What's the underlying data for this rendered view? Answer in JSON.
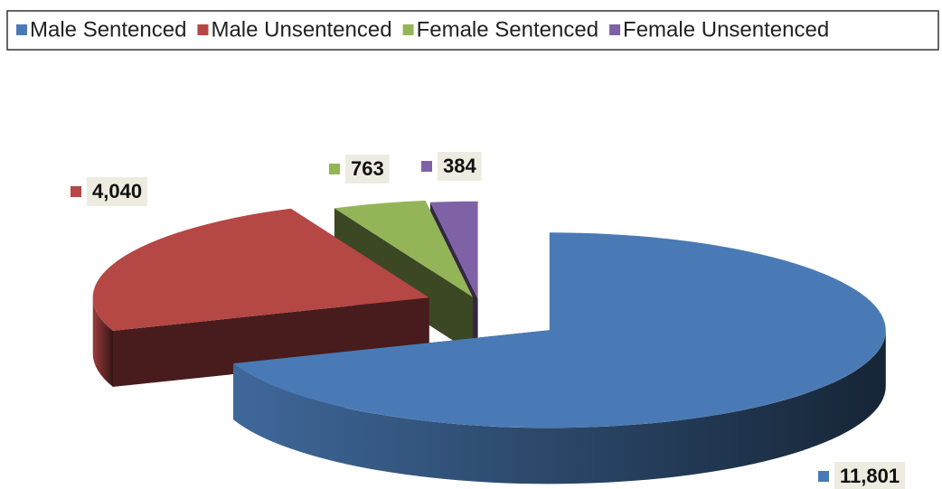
{
  "chart_data": {
    "type": "pie",
    "categories": [
      "Male Sentenced",
      "Male Unsentenced",
      "Female Sentenced",
      "Female Unsentenced"
    ],
    "values": [
      11801,
      4040,
      763,
      384
    ],
    "value_labels": [
      "11,801",
      "4,040",
      "763",
      "384"
    ],
    "colors": [
      "#4a7ab5",
      "#b54745",
      "#93b558",
      "#7f62a6"
    ],
    "legend": "top"
  }
}
